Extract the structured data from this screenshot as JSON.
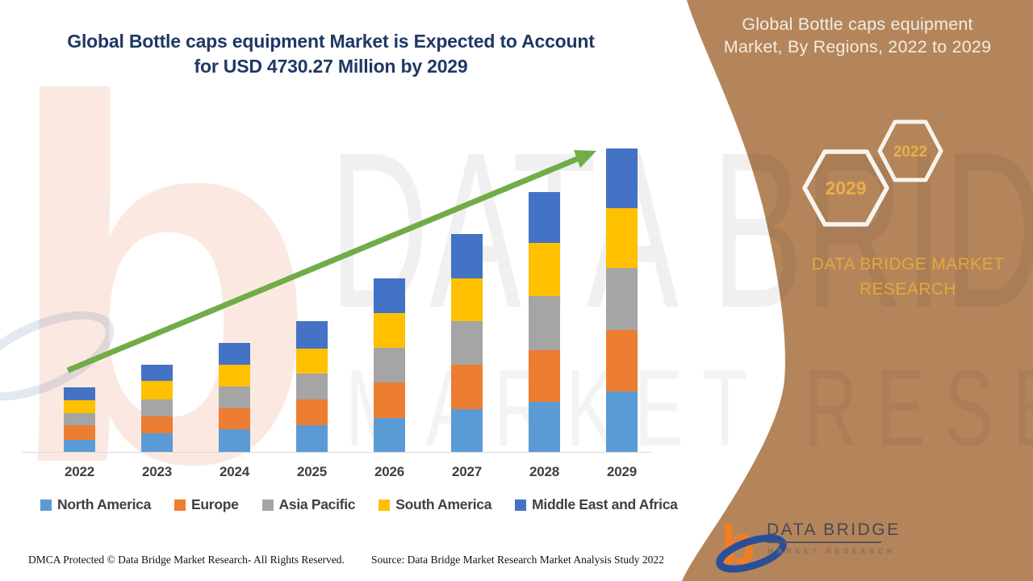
{
  "header": {
    "main_title_line1": "Global Bottle caps equipment Market is Expected to Account",
    "main_title_line2": "for USD 4730.27 Million by 2029"
  },
  "sidebar": {
    "title_line1": "Global Bottle caps equipment",
    "title_line2": "Market, By Regions, 2022 to 2029",
    "hexagon_large_label": "2029",
    "hexagon_small_label": "2022",
    "brand_line1": "DATA BRIDGE MARKET",
    "brand_line2": "RESEARCH",
    "colors": {
      "background": "#b4855b",
      "title_text": "#f3ecdf",
      "accent_gold": "#e2a83e",
      "hexagon_border": "#f8f4ed"
    }
  },
  "watermark": {
    "big_letter": "b",
    "line1": "DATA BRIDGE",
    "line2": "MARKET RESEARCH"
  },
  "logo": {
    "letter": "b",
    "wordmark": "DATA BRIDGE",
    "subtext": "MARKET RESEARCH"
  },
  "chart_data": {
    "type": "bar",
    "stacked": true,
    "title": "Global Bottle caps equipment Market is Expected to Account for USD 4730.27 Million by 2029",
    "xlabel": "",
    "ylabel": "",
    "grid": false,
    "legend_position": "bottom",
    "categories": [
      "2022",
      "2023",
      "2024",
      "2025",
      "2026",
      "2027",
      "2028",
      "2029"
    ],
    "series": [
      {
        "name": "North America",
        "color": "#5b9bd5",
        "values": [
          189,
          290,
          353,
          416,
          530,
          669,
          782,
          946
        ]
      },
      {
        "name": "Europe",
        "color": "#ed7d31",
        "values": [
          227,
          265,
          328,
          404,
          555,
          694,
          807,
          959
        ]
      },
      {
        "name": "Asia Pacific",
        "color": "#a5a5a5",
        "values": [
          189,
          265,
          341,
          404,
          542,
          681,
          833,
          959
        ]
      },
      {
        "name": "South America",
        "color": "#ffc000",
        "values": [
          202,
          290,
          341,
          391,
          542,
          656,
          833,
          933
        ]
      },
      {
        "name": "Middle East and Africa",
        "color": "#4472c4",
        "values": [
          202,
          252,
          341,
          429,
          542,
          694,
          795,
          933.27
        ]
      }
    ],
    "totals_usd_million_est": [
      1009,
      1362,
      1704,
      2044,
      2711,
      3394,
      4050,
      4730.27
    ],
    "stated_value_2029_usd_million": 4730.27,
    "trend_arrow": {
      "color": "#70ad47"
    },
    "colors": {
      "axis_line": "#d8d8d8",
      "label_text": "#404040",
      "title_text": "#1f3864"
    }
  },
  "footer": {
    "left": "DMCA Protected © Data Bridge Market Research- All Rights Reserved.",
    "right": "Source: Data Bridge Market Research Market Analysis Study 2022"
  }
}
